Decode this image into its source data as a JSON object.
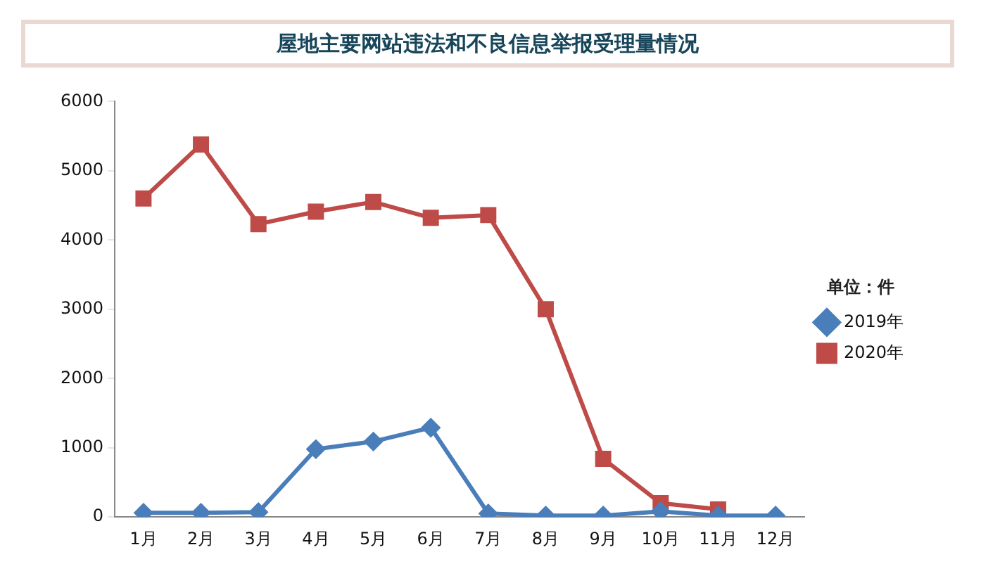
{
  "chart_data": {
    "type": "line",
    "title": "屋地主要网站违法和不良信息举报受理量情况",
    "categories": [
      "1月",
      "2月",
      "3月",
      "4月",
      "5月",
      "6月",
      "7月",
      "8月",
      "9月",
      "10月",
      "11月",
      "12月"
    ],
    "series": [
      {
        "name": "2019年",
        "color": "#4a7ebb",
        "marker": "diamond",
        "values": [
          60,
          60,
          70,
          980,
          1090,
          1290,
          50,
          20,
          20,
          80,
          20,
          20
        ]
      },
      {
        "name": "2020年",
        "color": "#be4b48",
        "marker": "square",
        "values": [
          4600,
          5380,
          4230,
          4410,
          4550,
          4320,
          4360,
          3000,
          840,
          200,
          110,
          null
        ]
      }
    ],
    "legend_title": "单位：件",
    "legend": "right",
    "ylim": [
      0,
      6000
    ],
    "yticks": [
      0,
      1000,
      2000,
      3000,
      4000,
      5000,
      6000
    ],
    "grid": false
  }
}
